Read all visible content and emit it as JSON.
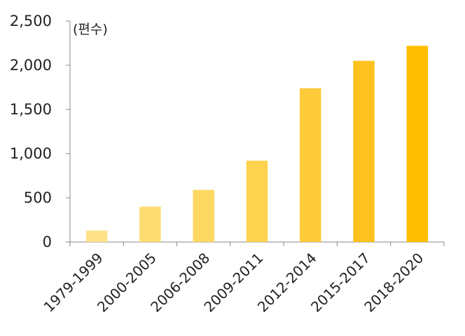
{
  "chart_data": {
    "type": "bar",
    "unit_label": "(편수)",
    "categories": [
      "1979-1999",
      "2000-2005",
      "2006-2008",
      "2009-2011",
      "2012-2014",
      "2015-2017",
      "2018-2020"
    ],
    "values": [
      130,
      400,
      590,
      920,
      1740,
      2050,
      2220
    ],
    "ylim": [
      0,
      2500
    ],
    "yticks": [
      0,
      500,
      1000,
      1500,
      2000,
      2500
    ],
    "ytick_labels": [
      "0",
      "500",
      "1,000",
      "1,500",
      "2,000",
      "2,500"
    ],
    "bar_colors": [
      "#FDE28A",
      "#FDDC72",
      "#FDD862",
      "#FDD24E",
      "#FECB3A",
      "#FEC21E",
      "#FEBF00"
    ],
    "grid": false,
    "legend": "none"
  }
}
